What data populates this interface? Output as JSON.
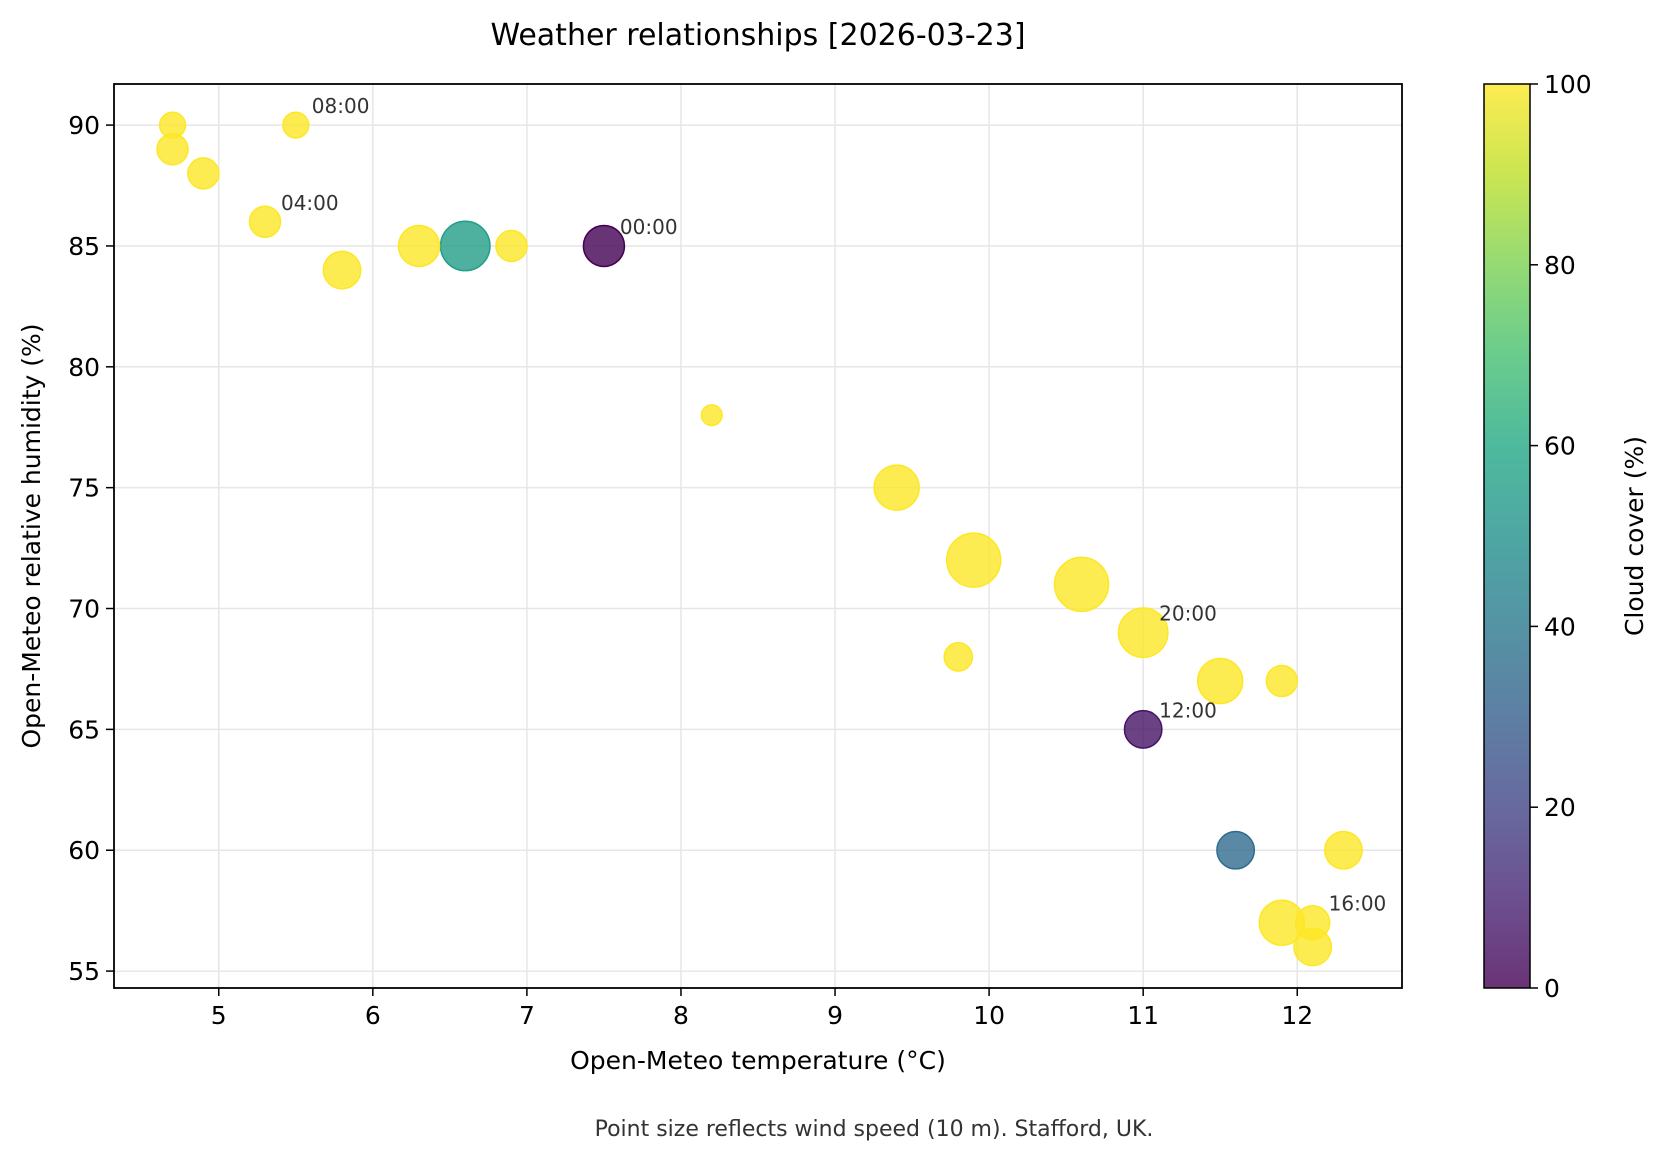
{
  "chart_data": {
    "type": "scatter",
    "title": "Weather relationships [2026-03-23]",
    "xlabel": "Open-Meteo temperature (°C)",
    "ylabel": "Open-Meteo relative humidity (%)",
    "caption": "Point size reflects wind speed (10 m). Stafford, UK.",
    "xlim": [
      4.32,
      12.68
    ],
    "ylim": [
      54.3,
      91.7
    ],
    "xticks": [
      5,
      6,
      7,
      8,
      9,
      10,
      11,
      12
    ],
    "yticks": [
      55,
      60,
      65,
      70,
      75,
      80,
      85,
      90
    ],
    "grid": true,
    "colorbar": {
      "label": "Cloud cover (%)",
      "min": 0,
      "max": 100,
      "ticks": [
        0,
        20,
        40,
        60,
        80,
        100
      ],
      "colormap": "viridis"
    },
    "points": [
      {
        "x": 7.5,
        "y": 85,
        "cloud": 0,
        "wind": 12,
        "label": "00:00"
      },
      {
        "x": 6.6,
        "y": 85,
        "cloud": 55,
        "wind": 14,
        "label": ""
      },
      {
        "x": 6.9,
        "y": 85,
        "cloud": 100,
        "wind": 9,
        "label": ""
      },
      {
        "x": 6.3,
        "y": 85,
        "cloud": 100,
        "wind": 12,
        "label": ""
      },
      {
        "x": 5.3,
        "y": 86,
        "cloud": 100,
        "wind": 9,
        "label": "04:00"
      },
      {
        "x": 5.8,
        "y": 84,
        "cloud": 100,
        "wind": 11,
        "label": ""
      },
      {
        "x": 4.9,
        "y": 88,
        "cloud": 100,
        "wind": 9,
        "label": ""
      },
      {
        "x": 4.7,
        "y": 89,
        "cloud": 100,
        "wind": 9,
        "label": ""
      },
      {
        "x": 4.7,
        "y": 90,
        "cloud": 100,
        "wind": 7,
        "label": ""
      },
      {
        "x": 5.5,
        "y": 90,
        "cloud": 100,
        "wind": 7,
        "label": "08:00"
      },
      {
        "x": 8.2,
        "y": 78,
        "cloud": 100,
        "wind": 4,
        "label": ""
      },
      {
        "x": 9.4,
        "y": 75,
        "cloud": 100,
        "wind": 13,
        "label": ""
      },
      {
        "x": 11.0,
        "y": 65,
        "cloud": 5,
        "wind": 11,
        "label": "12:00"
      },
      {
        "x": 11.6,
        "y": 60,
        "cloud": 35,
        "wind": 11,
        "label": ""
      },
      {
        "x": 12.3,
        "y": 60,
        "cloud": 100,
        "wind": 11,
        "label": ""
      },
      {
        "x": 11.9,
        "y": 57,
        "cloud": 100,
        "wind": 13,
        "label": ""
      },
      {
        "x": 12.1,
        "y": 57,
        "cloud": 100,
        "wind": 10,
        "label": "16:00"
      },
      {
        "x": 12.1,
        "y": 56,
        "cloud": 100,
        "wind": 11,
        "label": ""
      },
      {
        "x": 11.5,
        "y": 67,
        "cloud": 100,
        "wind": 13,
        "label": ""
      },
      {
        "x": 11.9,
        "y": 67,
        "cloud": 100,
        "wind": 9,
        "label": ""
      },
      {
        "x": 9.8,
        "y": 68,
        "cloud": 100,
        "wind": 8,
        "label": ""
      },
      {
        "x": 11.0,
        "y": 69,
        "cloud": 100,
        "wind": 14,
        "label": "20:00"
      },
      {
        "x": 10.6,
        "y": 71,
        "cloud": 100,
        "wind": 15,
        "label": ""
      },
      {
        "x": 9.9,
        "y": 72,
        "cloud": 100,
        "wind": 15,
        "label": ""
      }
    ]
  }
}
